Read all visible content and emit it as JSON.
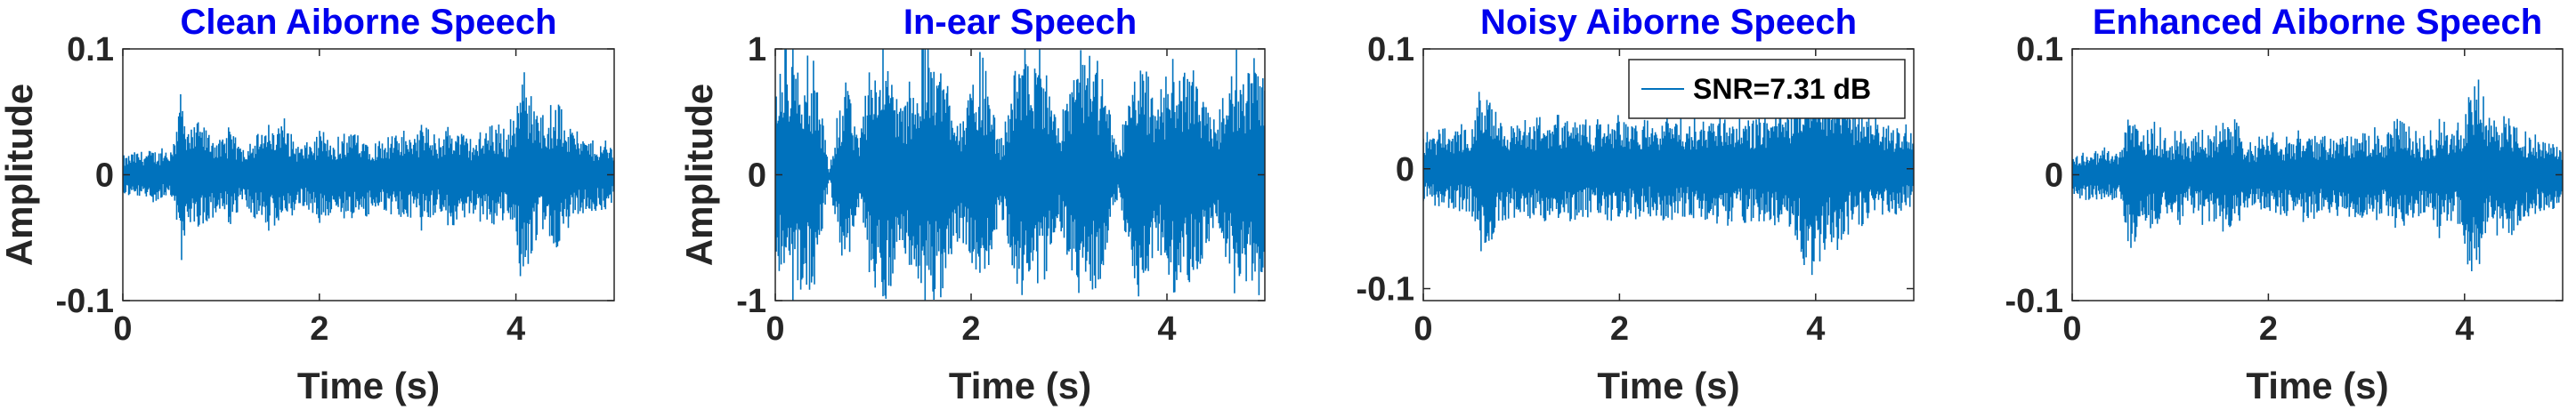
{
  "colors": {
    "signal": "#0072BD",
    "title": "#0000EE",
    "axis": "#262626"
  },
  "chart_data": [
    {
      "type": "line",
      "title": "Clean Aiborne Speech",
      "xlabel": "Time (s)",
      "ylabel": "Amplitude",
      "xlim": [
        0,
        5
      ],
      "ylim": [
        -0.1,
        0.1
      ],
      "xticks": [
        0,
        2,
        4
      ],
      "yticks": [
        -0.1,
        0,
        0.1
      ],
      "xtick_labels": [
        "0",
        "2",
        "4"
      ],
      "ytick_labels": [
        "-0.1",
        "0",
        "0.1"
      ],
      "legend": "",
      "envelope_peaks": {
        "t": [
          0,
          0.1,
          0.3,
          0.5,
          0.6,
          0.7,
          0.8,
          1.0,
          1.1,
          1.2,
          1.3,
          1.5,
          1.65,
          1.8,
          2.0,
          2.2,
          2.4,
          2.55,
          2.7,
          2.9,
          3.05,
          3.2,
          3.3,
          3.5,
          3.6,
          3.75,
          3.9,
          4.0,
          4.05,
          4.15,
          4.25,
          4.4,
          4.6,
          4.8,
          5.0
        ],
        "amp": [
          0.015,
          0.02,
          0.022,
          0.02,
          0.07,
          0.035,
          0.045,
          0.03,
          0.04,
          0.025,
          0.035,
          0.04,
          0.045,
          0.025,
          0.035,
          0.03,
          0.04,
          0.03,
          0.035,
          0.035,
          0.04,
          0.03,
          0.045,
          0.035,
          0.03,
          0.045,
          0.035,
          0.055,
          0.085,
          0.075,
          0.045,
          0.06,
          0.035,
          0.03,
          0.025
        ]
      }
    },
    {
      "type": "line",
      "title": "In-ear Speech",
      "xlabel": "Time (s)",
      "ylabel": "Amplitude",
      "xlim": [
        0,
        5
      ],
      "ylim": [
        -1,
        1
      ],
      "xticks": [
        0,
        2,
        4
      ],
      "yticks": [
        -1,
        0,
        1
      ],
      "xtick_labels": [
        "0",
        "2",
        "4"
      ],
      "ytick_labels": [
        "-1",
        "0",
        "1"
      ],
      "legend": "",
      "envelope_peaks": {
        "t": [
          0,
          0.1,
          0.25,
          0.4,
          0.55,
          0.7,
          0.85,
          1.0,
          1.15,
          1.3,
          1.5,
          1.7,
          1.9,
          2.1,
          2.3,
          2.5,
          2.7,
          2.9,
          3.1,
          3.3,
          3.5,
          3.7,
          3.9,
          4.1,
          4.3,
          4.5,
          4.7,
          4.85,
          5.0
        ],
        "amp": [
          0.8,
          1.0,
          1.0,
          0.9,
          0.05,
          0.8,
          0.3,
          1.0,
          1.0,
          0.6,
          1.0,
          1.0,
          0.5,
          1.0,
          0.3,
          1.0,
          1.0,
          0.4,
          1.0,
          0.9,
          0.2,
          1.0,
          0.6,
          1.0,
          0.8,
          0.4,
          1.0,
          0.9,
          1.0
        ]
      }
    },
    {
      "type": "line",
      "title": "Noisy Aiborne Speech",
      "xlabel": "Time (s)",
      "ylabel": "",
      "xlim": [
        0,
        5
      ],
      "ylim": [
        -0.11,
        0.1
      ],
      "xticks": [
        0,
        2,
        4
      ],
      "yticks": [
        -0.1,
        0,
        0.1
      ],
      "xtick_labels": [
        "0",
        "2",
        "4"
      ],
      "ytick_labels": [
        "-0.1",
        "0",
        "0.1"
      ],
      "legend": "SNR=7.31 dB",
      "legend_position": "top-right",
      "envelope_peaks": {
        "t": [
          0,
          0.3,
          0.5,
          0.6,
          0.8,
          1.0,
          1.3,
          1.5,
          1.7,
          2.0,
          2.3,
          2.5,
          2.7,
          3.0,
          3.3,
          3.6,
          3.8,
          3.9,
          4.0,
          4.1,
          4.2,
          4.4,
          4.6,
          4.8,
          5.0
        ],
        "amp": [
          0.03,
          0.035,
          0.04,
          0.075,
          0.045,
          0.04,
          0.045,
          0.045,
          0.04,
          0.045,
          0.04,
          0.045,
          0.04,
          0.05,
          0.045,
          0.05,
          0.06,
          0.085,
          0.1,
          0.065,
          0.07,
          0.05,
          0.045,
          0.04,
          0.035
        ]
      }
    },
    {
      "type": "line",
      "title": "Enhanced Aiborne Speech",
      "xlabel": "Time (s)",
      "ylabel": "",
      "xlim": [
        0,
        5
      ],
      "ylim": [
        -0.1,
        0.1
      ],
      "xticks": [
        0,
        2,
        4
      ],
      "yticks": [
        -0.1,
        0,
        0.1
      ],
      "xtick_labels": [
        "0",
        "2",
        "4"
      ],
      "ytick_labels": [
        "-0.1",
        "0",
        "0.1"
      ],
      "legend": "",
      "envelope_peaks": {
        "t": [
          0,
          0.1,
          0.3,
          0.5,
          0.6,
          0.7,
          0.8,
          1.0,
          1.1,
          1.2,
          1.3,
          1.5,
          1.65,
          1.8,
          2.0,
          2.2,
          2.4,
          2.55,
          2.7,
          2.9,
          3.05,
          3.2,
          3.3,
          3.5,
          3.6,
          3.75,
          3.9,
          4.0,
          4.05,
          4.15,
          4.25,
          4.4,
          4.6,
          4.8,
          5.0
        ],
        "amp": [
          0.015,
          0.02,
          0.022,
          0.02,
          0.068,
          0.035,
          0.045,
          0.03,
          0.04,
          0.025,
          0.035,
          0.04,
          0.045,
          0.025,
          0.035,
          0.03,
          0.04,
          0.03,
          0.035,
          0.035,
          0.04,
          0.03,
          0.045,
          0.035,
          0.03,
          0.045,
          0.035,
          0.055,
          0.083,
          0.075,
          0.045,
          0.058,
          0.035,
          0.03,
          0.025
        ]
      }
    }
  ]
}
